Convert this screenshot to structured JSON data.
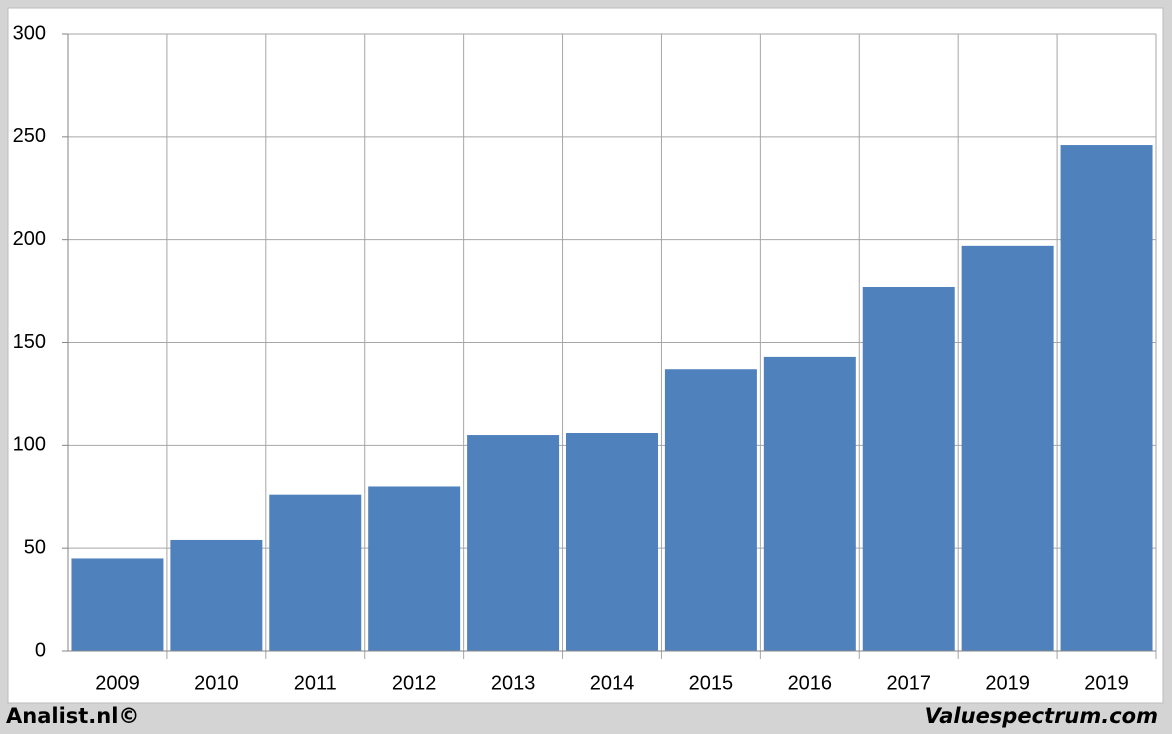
{
  "chart_data": {
    "type": "bar",
    "categories": [
      "2009",
      "2010",
      "2011",
      "2012",
      "2013",
      "2014",
      "2015",
      "2016",
      "2017",
      "2019",
      "2019"
    ],
    "values": [
      45,
      54,
      76,
      80,
      105,
      106,
      137,
      143,
      177,
      197,
      246
    ],
    "color": "#4f81bd",
    "ylim": [
      0,
      300
    ],
    "yticks": [
      0,
      50,
      100,
      150,
      200,
      250,
      300
    ],
    "grid": true
  },
  "footer": {
    "left": "Analist.nl©",
    "right": "Valuespectrum.com"
  }
}
